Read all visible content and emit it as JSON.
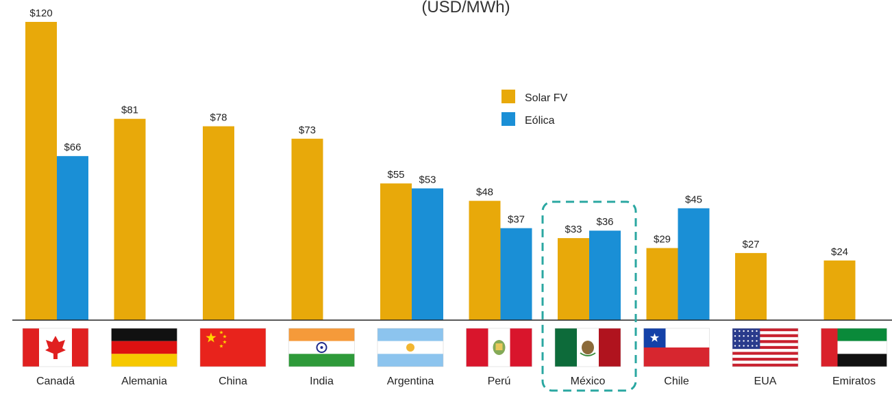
{
  "chart_data": {
    "type": "bar",
    "title": "(USD/MWh)",
    "categories": [
      "Canadá",
      "Alemania",
      "China",
      "India",
      "Argentina",
      "Perú",
      "México",
      "Chile",
      "EUA",
      "Emiratos"
    ],
    "series": [
      {
        "name": "Solar FV",
        "color": "#E8A90A",
        "values": [
          120,
          81,
          78,
          73,
          55,
          48,
          33,
          29,
          27,
          24
        ],
        "labels": [
          "$120",
          "$81",
          "$78",
          "$73",
          "$55",
          "$48",
          "$33",
          "$29",
          "$27",
          "$24"
        ]
      },
      {
        "name": "Eólica",
        "color": "#1A8FD6",
        "values": [
          66,
          null,
          null,
          null,
          53,
          37,
          36,
          45,
          null,
          null
        ],
        "labels": [
          "$66",
          null,
          null,
          null,
          "$53",
          "$37",
          "$36",
          "$45",
          null,
          null
        ]
      }
    ],
    "ylim": [
      0,
      120
    ],
    "highlight_category": "México",
    "highlight_color": "#2AA7A1",
    "legend": "top-center",
    "grid": false
  },
  "flags": [
    {
      "country": "Canadá",
      "icon": "canada-flag-icon"
    },
    {
      "country": "Alemania",
      "icon": "germany-flag-icon"
    },
    {
      "country": "China",
      "icon": "china-flag-icon"
    },
    {
      "country": "India",
      "icon": "india-flag-icon"
    },
    {
      "country": "Argentina",
      "icon": "argentina-flag-icon"
    },
    {
      "country": "Perú",
      "icon": "peru-flag-icon"
    },
    {
      "country": "México",
      "icon": "mexico-flag-icon"
    },
    {
      "country": "Chile",
      "icon": "chile-flag-icon"
    },
    {
      "country": "EUA",
      "icon": "usa-flag-icon"
    },
    {
      "country": "Emiratos",
      "icon": "uae-flag-icon"
    }
  ]
}
